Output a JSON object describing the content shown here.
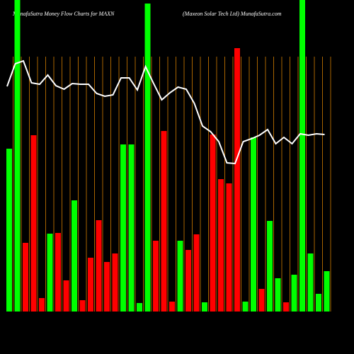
{
  "chart_data": {
    "type": "bar",
    "title": "MunafaSutra  Money Flow  Charts for MAXN",
    "subtitle": "(Maxeon  Solar Tech Ltd) MunafaSutra.com",
    "ylim": [
      0,
      440
    ],
    "values": [
      230,
      450,
      97,
      249,
      19,
      110,
      111,
      44,
      157,
      16,
      76,
      129,
      70,
      82,
      236,
      236,
      12,
      435,
      100,
      255,
      14,
      100,
      87,
      109,
      13,
      250,
      187,
      181,
      372,
      14,
      246,
      32,
      128,
      47,
      13,
      52,
      450,
      82,
      25,
      57
    ],
    "colors": [
      "#00ff00",
      "#00ff00",
      "#ff0000",
      "#ff0000",
      "#ff0000",
      "#00ff00",
      "#ff0000",
      "#ff0000",
      "#00ff00",
      "#ff0000",
      "#ff0000",
      "#ff0000",
      "#ff0000",
      "#ff0000",
      "#00ff00",
      "#00ff00",
      "#00ff00",
      "#00ff00",
      "#ff0000",
      "#ff0000",
      "#ff0000",
      "#00ff00",
      "#ff0000",
      "#ff0000",
      "#00ff00",
      "#ff0000",
      "#ff0000",
      "#ff0000",
      "#ff0000",
      "#00ff00",
      "#00ff00",
      "#ff0000",
      "#00ff00",
      "#00ff00",
      "#ff0000",
      "#00ff00",
      "#00ff00",
      "#00ff00",
      "#00ff00",
      "#00ff00"
    ],
    "line": {
      "color": "#ffffff",
      "values": [
        318,
        350,
        354,
        323,
        321,
        334,
        319,
        314,
        322,
        321,
        321,
        308,
        304,
        306,
        330,
        330,
        313,
        346,
        322,
        299,
        309,
        317,
        314,
        294,
        262,
        254,
        240,
        210,
        209,
        240,
        244,
        249,
        257,
        237,
        246,
        237,
        251,
        249,
        251,
        250
      ]
    }
  }
}
